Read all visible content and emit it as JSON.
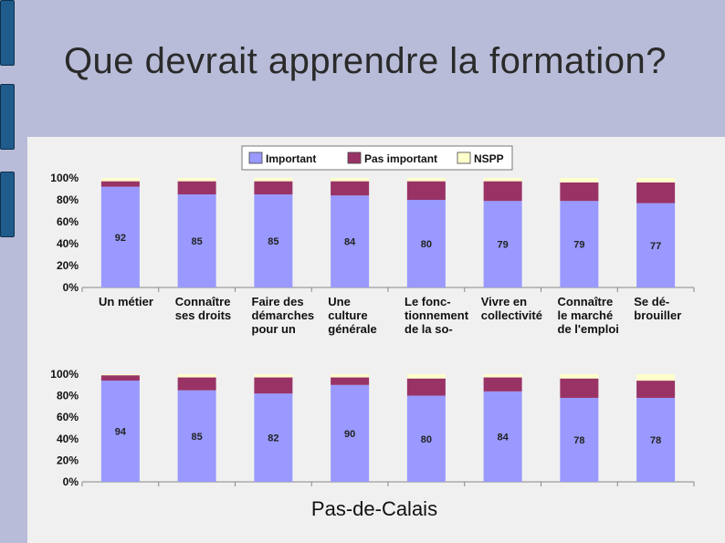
{
  "title": "Que devrait apprendre la formation?",
  "subtitle": "Pas-de-Calais",
  "colors": {
    "important": "#9999ff",
    "pas_important": "#993366",
    "nspp": "#ffffcc",
    "bg": "#b9bcd8",
    "panel": "#f0f0f0"
  },
  "legend": [
    "Important",
    "Pas important",
    "NSPP"
  ],
  "chart_data": [
    {
      "type": "bar",
      "stacked": true,
      "normalized": true,
      "ylim": [
        0,
        100
      ],
      "yticks": [
        "0%",
        "20%",
        "40%",
        "60%",
        "80%",
        "100%"
      ],
      "legend_position": "top",
      "categories": [
        [
          "Un métier"
        ],
        [
          "Connaître",
          "ses droits"
        ],
        [
          "Faire des",
          "démarches",
          "pour un"
        ],
        [
          "Une",
          "culture",
          "générale"
        ],
        [
          "Le fonc-",
          "tionnement",
          "de la so-"
        ],
        [
          "Vivre en",
          "collectivité"
        ],
        [
          "Connaître",
          "le marché",
          "de l'emploi"
        ],
        [
          "Se dé-",
          "brouiller"
        ]
      ],
      "series": [
        {
          "name": "Important",
          "values": [
            92,
            85,
            85,
            84,
            80,
            79,
            79,
            77
          ]
        },
        {
          "name": "Pas important",
          "values": [
            5,
            12,
            12,
            13,
            17,
            18,
            17,
            19
          ]
        },
        {
          "name": "NSPP",
          "values": [
            3,
            3,
            3,
            3,
            3,
            3,
            4,
            4
          ]
        }
      ],
      "data_labels": [
        92,
        85,
        85,
        84,
        80,
        79,
        79,
        77
      ]
    },
    {
      "type": "bar",
      "stacked": true,
      "normalized": true,
      "ylim": [
        0,
        100
      ],
      "yticks": [
        "0%",
        "20%",
        "40%",
        "60%",
        "80%",
        "100%"
      ],
      "series": [
        {
          "name": "Important",
          "values": [
            94,
            85,
            82,
            90,
            80,
            84,
            78,
            78
          ]
        },
        {
          "name": "Pas important",
          "values": [
            5,
            12,
            15,
            7,
            16,
            13,
            18,
            16
          ]
        },
        {
          "name": "NSPP",
          "values": [
            1,
            3,
            3,
            3,
            4,
            3,
            4,
            6
          ]
        }
      ],
      "data_labels": [
        94,
        85,
        82,
        90,
        80,
        84,
        78,
        78
      ]
    }
  ]
}
